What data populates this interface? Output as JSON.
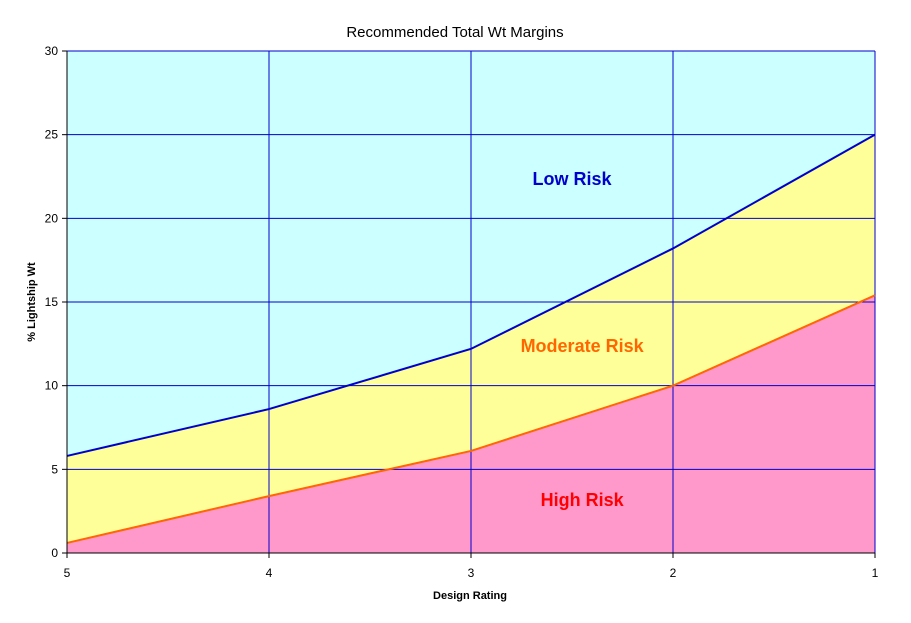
{
  "chart_data": {
    "type": "area",
    "title": "Recommended Total Wt Margins",
    "xlabel": "Design Rating",
    "ylabel": "% Lightship Wt",
    "categories": [
      "5",
      "4",
      "3",
      "2",
      "1"
    ],
    "ylim": [
      0,
      30
    ],
    "yticks": [
      0,
      5,
      10,
      15,
      20,
      25,
      30
    ],
    "grid": true,
    "series": [
      {
        "name": "High Risk boundary",
        "values": [
          0.6,
          3.4,
          6.1,
          10.0,
          15.4
        ],
        "line_color": "#FF6600"
      },
      {
        "name": "Low Risk boundary",
        "values": [
          5.8,
          8.6,
          12.2,
          18.2,
          25.0
        ],
        "line_color": "#0000CC"
      }
    ],
    "regions": [
      {
        "label": "High Risk",
        "fill": "#FF99CC",
        "text_color": "#FF0000"
      },
      {
        "label": "Moderate Risk",
        "fill": "#FFFF99",
        "text_color": "#FF6600"
      },
      {
        "label": "Low Risk",
        "fill": "#CCFFFF",
        "text_color": "#0000CC"
      }
    ],
    "colors": {
      "grid": "#0000CC",
      "axis": "#000000"
    }
  }
}
